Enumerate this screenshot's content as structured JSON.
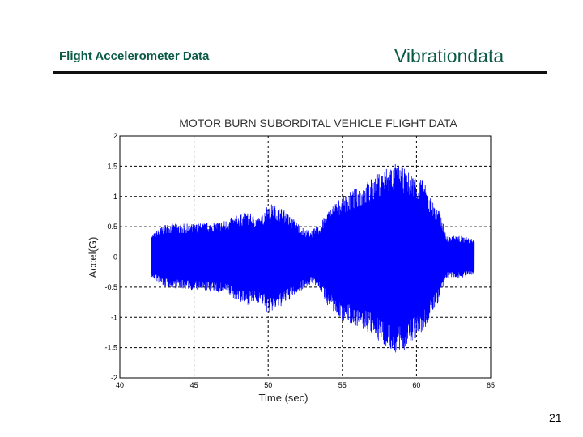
{
  "header": {
    "left_title": "Flight Accelerometer Data",
    "right_title": "Vibrationdata"
  },
  "footer": {
    "page_number": "21"
  },
  "colors": {
    "signal": "#0000ff",
    "header_text": "#0b5a45"
  },
  "chart_data": {
    "type": "line",
    "title": "MOTOR BURN   SUBORDITAL VEHICLE  FLIGHT DATA",
    "xlabel": "Time (sec)",
    "ylabel": "Accel(G)",
    "xlim": [
      40,
      65
    ],
    "ylim": [
      -2,
      2
    ],
    "grid": true,
    "xticks": [
      "40",
      "45",
      "50",
      "55",
      "60",
      "65"
    ],
    "yticks": [
      "-2",
      "-1.5",
      "-1",
      "-0.5",
      "0",
      "0.5",
      "1",
      "1.5",
      "2"
    ],
    "series": [
      {
        "color": "#0000ff",
        "x_range": [
          42.1,
          63.9
        ],
        "envelope": {
          "t": [
            42.1,
            43.0,
            45.0,
            47.0,
            48.5,
            49.5,
            50.0,
            51.0,
            52.5,
            53.0,
            53.5,
            54.0,
            54.5,
            55.0,
            56.0,
            57.0,
            58.0,
            58.5,
            59.0,
            59.5,
            60.0,
            60.5,
            61.0,
            61.6,
            62.0,
            63.0,
            63.9
          ],
          "upper": [
            0.35,
            0.55,
            0.55,
            0.6,
            0.75,
            0.65,
            0.9,
            0.8,
            0.45,
            0.45,
            0.55,
            0.75,
            0.9,
            1.0,
            1.15,
            1.3,
            1.5,
            1.55,
            1.5,
            1.4,
            1.35,
            1.25,
            0.95,
            0.75,
            0.35,
            0.35,
            0.3
          ],
          "lower": [
            -0.35,
            -0.5,
            -0.55,
            -0.6,
            -0.8,
            -0.75,
            -0.95,
            -0.8,
            -0.5,
            -0.45,
            -0.55,
            -0.8,
            -0.95,
            -1.05,
            -1.15,
            -1.3,
            -1.5,
            -1.6,
            -1.6,
            -1.45,
            -1.35,
            -1.25,
            -0.95,
            -0.7,
            -0.35,
            -0.35,
            -0.3
          ]
        }
      }
    ]
  }
}
